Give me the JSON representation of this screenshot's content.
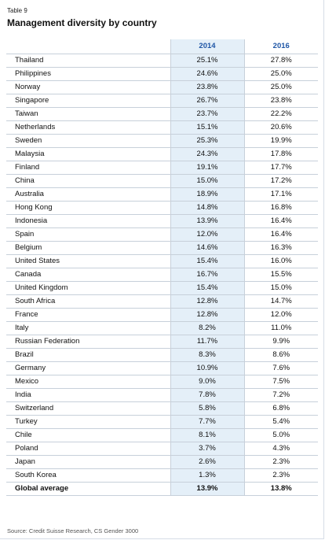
{
  "header": {
    "label": "Table 9",
    "title": "Management diversity by country"
  },
  "table": {
    "columns": [
      "2014",
      "2016"
    ],
    "rows": [
      {
        "country": "Thailand",
        "y2014": "25.1%",
        "y2016": "27.8%"
      },
      {
        "country": "Philippines",
        "y2014": "24.6%",
        "y2016": "25.0%"
      },
      {
        "country": "Norway",
        "y2014": "23.8%",
        "y2016": "25.0%"
      },
      {
        "country": "Singapore",
        "y2014": "26.7%",
        "y2016": "23.8%"
      },
      {
        "country": "Taiwan",
        "y2014": "23.7%",
        "y2016": "22.2%"
      },
      {
        "country": "Netherlands",
        "y2014": "15.1%",
        "y2016": "20.6%"
      },
      {
        "country": "Sweden",
        "y2014": "25.3%",
        "y2016": "19.9%"
      },
      {
        "country": "Malaysia",
        "y2014": "24.3%",
        "y2016": "17.8%"
      },
      {
        "country": "Finland",
        "y2014": "19.1%",
        "y2016": "17.7%"
      },
      {
        "country": "China",
        "y2014": "15.0%",
        "y2016": "17.2%"
      },
      {
        "country": "Australia",
        "y2014": "18.9%",
        "y2016": "17.1%"
      },
      {
        "country": "Hong Kong",
        "y2014": "14.8%",
        "y2016": "16.8%"
      },
      {
        "country": "Indonesia",
        "y2014": "13.9%",
        "y2016": "16.4%"
      },
      {
        "country": "Spain",
        "y2014": "12.0%",
        "y2016": "16.4%"
      },
      {
        "country": "Belgium",
        "y2014": "14.6%",
        "y2016": "16.3%"
      },
      {
        "country": "United States",
        "y2014": "15.4%",
        "y2016": "16.0%"
      },
      {
        "country": "Canada",
        "y2014": "16.7%",
        "y2016": "15.5%"
      },
      {
        "country": "United Kingdom",
        "y2014": "15.4%",
        "y2016": "15.0%"
      },
      {
        "country": "South Africa",
        "y2014": "12.8%",
        "y2016": "14.7%"
      },
      {
        "country": "France",
        "y2014": "12.8%",
        "y2016": "12.0%"
      },
      {
        "country": "Italy",
        "y2014": "8.2%",
        "y2016": "11.0%"
      },
      {
        "country": "Russian Federation",
        "y2014": "11.7%",
        "y2016": "9.9%"
      },
      {
        "country": "Brazil",
        "y2014": "8.3%",
        "y2016": "8.6%"
      },
      {
        "country": "Germany",
        "y2014": "10.9%",
        "y2016": "7.6%"
      },
      {
        "country": "Mexico",
        "y2014": "9.0%",
        "y2016": "7.5%"
      },
      {
        "country": "India",
        "y2014": "7.8%",
        "y2016": "7.2%"
      },
      {
        "country": "Switzerland",
        "y2014": "5.8%",
        "y2016": "6.8%"
      },
      {
        "country": "Turkey",
        "y2014": "7.7%",
        "y2016": "5.4%"
      },
      {
        "country": "Chile",
        "y2014": "8.1%",
        "y2016": "5.0%"
      },
      {
        "country": "Poland",
        "y2014": "3.7%",
        "y2016": "4.3%"
      },
      {
        "country": "Japan",
        "y2014": "2.6%",
        "y2016": "2.3%"
      },
      {
        "country": "South Korea",
        "y2014": "1.3%",
        "y2016": "2.3%"
      }
    ],
    "total": {
      "country": "Global average",
      "y2014": "13.9%",
      "y2016": "13.8%"
    }
  },
  "footer": {
    "source": "Source: Credit Suisse Research, CS Gender 3000"
  },
  "colors": {
    "header_text": "#1f56a6",
    "column_shade": "#e4eff8",
    "rule": "#c7d0da"
  }
}
